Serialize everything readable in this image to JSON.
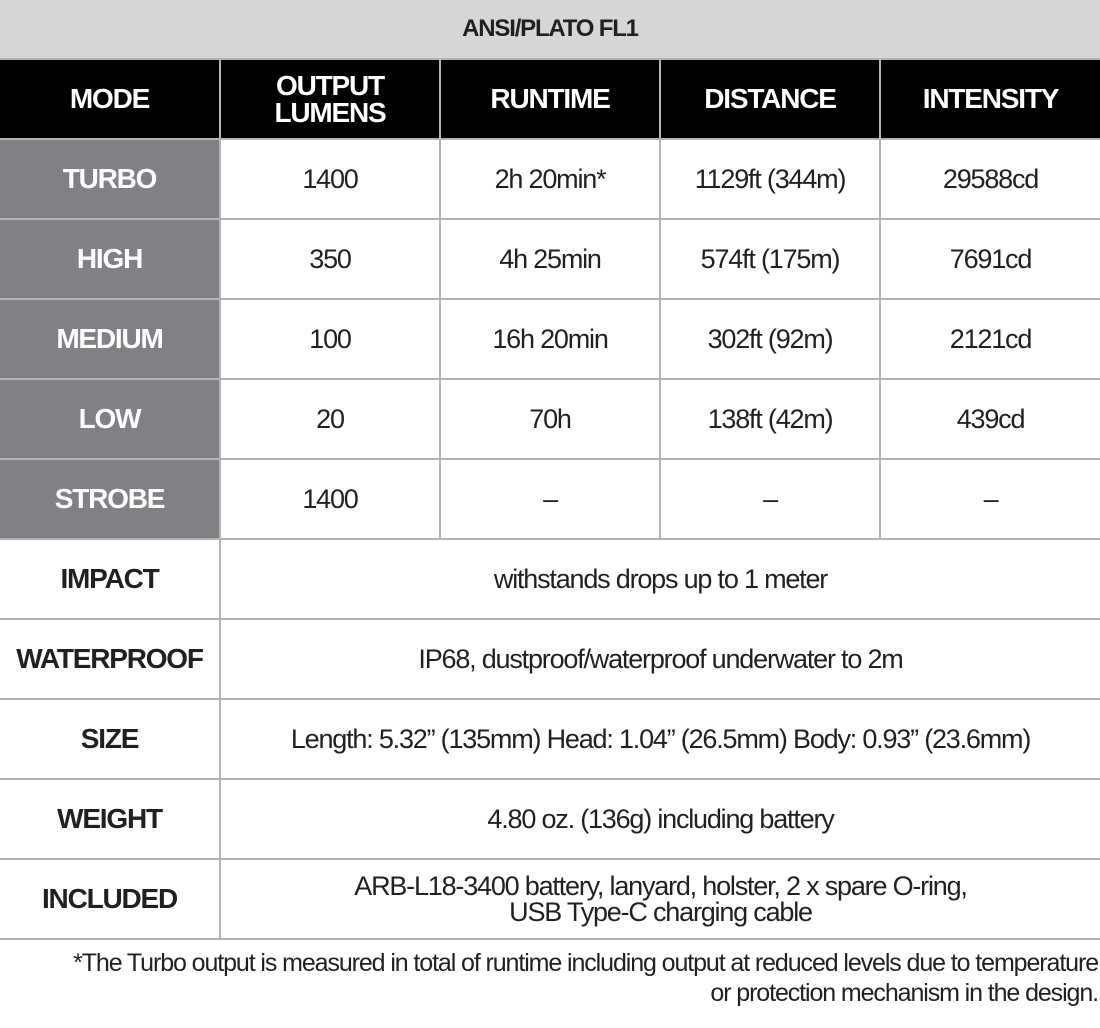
{
  "title": "ANSI/PLATO FL1",
  "headers": [
    "MODE",
    "OUTPUT LUMENS",
    "RUNTIME",
    "DISTANCE",
    "INTENSITY"
  ],
  "modes": [
    {
      "mode": "TURBO",
      "lumens": "1400",
      "runtime": "2h 20min*",
      "distance": "1129ft (344m)",
      "intensity": "29588cd"
    },
    {
      "mode": "HIGH",
      "lumens": "350",
      "runtime": "4h 25min",
      "distance": "574ft (175m)",
      "intensity": "7691cd"
    },
    {
      "mode": "MEDIUM",
      "lumens": "100",
      "runtime": "16h 20min",
      "distance": "302ft (92m)",
      "intensity": "2121cd"
    },
    {
      "mode": "LOW",
      "lumens": "20",
      "runtime": "70h",
      "distance": "138ft (42m)",
      "intensity": "439cd"
    },
    {
      "mode": "STROBE",
      "lumens": "1400",
      "runtime": "–",
      "distance": "–",
      "intensity": "–"
    }
  ],
  "specs": [
    {
      "label": "IMPACT",
      "value": "withstands drops up to 1 meter"
    },
    {
      "label": "WATERPROOF",
      "value": "IP68, dustproof/waterproof underwater to 2m"
    },
    {
      "label": "SIZE",
      "value": "Length: 5.32” (135mm) Head: 1.04” (26.5mm) Body: 0.93” (23.6mm)"
    },
    {
      "label": "WEIGHT",
      "value": "4.80 oz. (136g) including battery"
    },
    {
      "label": "INCLUDED",
      "value_line1": "ARB-L18-3400 battery, lanyard, holster, 2 x spare O-ring,",
      "value_line2": "USB Type-C charging cable"
    }
  ],
  "footnote": {
    "line1": "*The Turbo output is measured in total of runtime including output at reduced levels due to temperature",
    "line2": "or protection mechanism in the design."
  },
  "colors": {
    "title_bg": "#d5d6d8",
    "header_bg": "#000000",
    "mode_bg": "#808184",
    "border": "#b3b3b3"
  }
}
